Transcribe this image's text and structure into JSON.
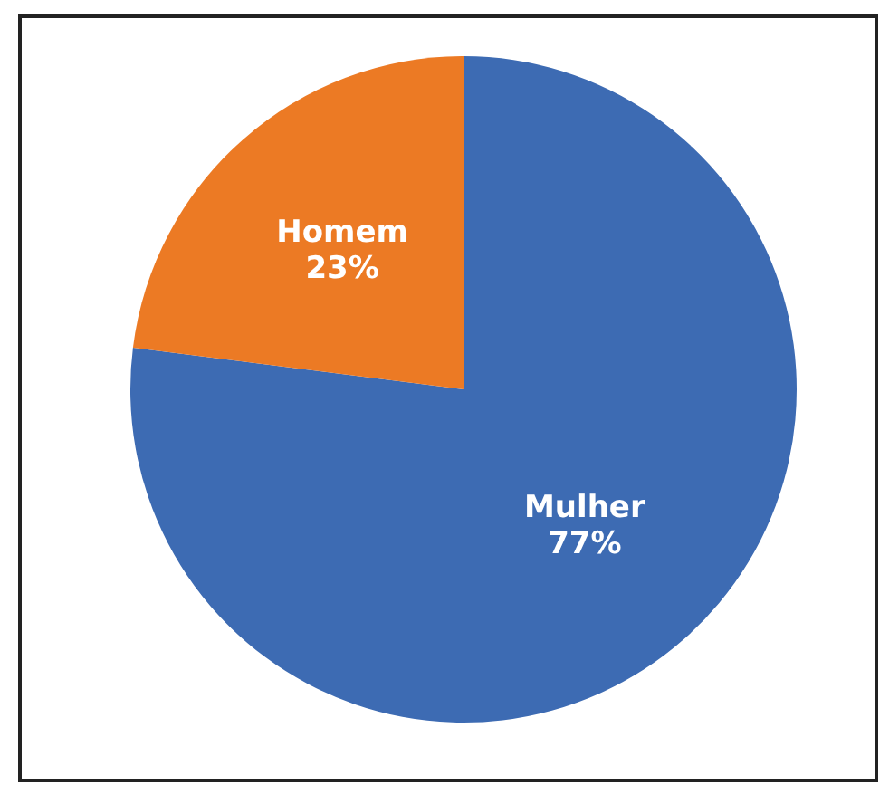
{
  "chart_data": {
    "type": "pie",
    "categories": [
      "Mulher",
      "Homem"
    ],
    "values": [
      77,
      23
    ],
    "value_labels": [
      "77%",
      "23%"
    ],
    "colors": [
      "#3d6bb3",
      "#ec7a24"
    ],
    "legend": false
  }
}
